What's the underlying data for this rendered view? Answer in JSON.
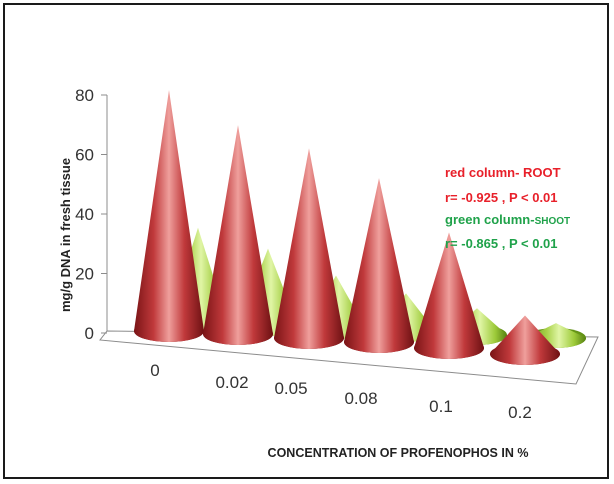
{
  "chart_data": {
    "type": "bar",
    "subtype": "3d-cone",
    "categories": [
      "0",
      "0.02",
      "0.05",
      "0.08",
      "0.1",
      "0.2"
    ],
    "series": [
      {
        "values": [
          75,
          65,
          59,
          51,
          36,
          12
        ],
        "color": "#c0393b"
      },
      {
        "values": [
          32,
          26,
          18,
          13,
          9,
          5
        ],
        "color": "#9ecb3a"
      }
    ],
    "xlabel": "CONCENTRATION OF PROFENOPHOS IN %",
    "ylabel": "mg/g DNA in  fresh tissue",
    "ylim": [
      0,
      80
    ],
    "yticks": [
      "0",
      "20",
      "40",
      "60",
      "80"
    ],
    "grid": false,
    "annotations": {
      "red_label": "red column- ROOT",
      "red_stats": "r= -0.925  , P < 0.01",
      "green_label_a": "green column-",
      "green_label_b": "SHOOT",
      "green_stats": "r= -0.865  ,  P < 0.01"
    }
  }
}
